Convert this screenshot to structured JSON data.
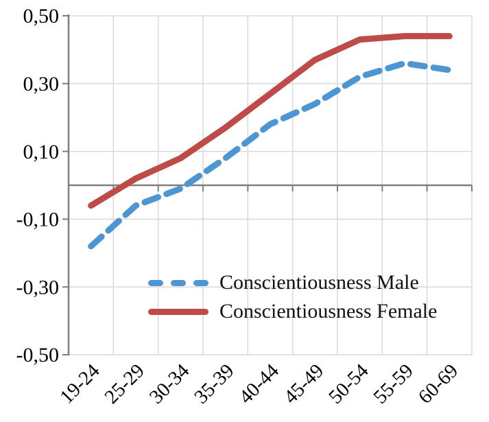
{
  "chart_data": {
    "type": "line",
    "title": "",
    "categories": [
      "19-24",
      "25-29",
      "30-34",
      "35-39",
      "40-44",
      "45-49",
      "50-54",
      "55-59",
      "60-69"
    ],
    "series": [
      {
        "name": "Conscientiousness Male",
        "color": "#4E96D3",
        "style": "dashed",
        "values": [
          -0.18,
          -0.06,
          -0.01,
          0.08,
          0.18,
          0.24,
          0.32,
          0.36,
          0.34
        ]
      },
      {
        "name": "Conscientiousness Female",
        "color": "#BE4B48",
        "style": "solid",
        "values": [
          -0.06,
          0.02,
          0.08,
          0.17,
          0.27,
          0.37,
          0.43,
          0.44,
          0.44
        ]
      }
    ],
    "xlabel": "",
    "ylabel": "",
    "ylim": [
      -0.5,
      0.5
    ],
    "y_ticks": [
      "0,50",
      "0,30",
      "0,10",
      "-0,10",
      "-0,30",
      "-0,50"
    ],
    "y_tick_values": [
      0.5,
      0.3,
      0.1,
      -0.1,
      -0.3,
      -0.5
    ],
    "decimal_separator": ",",
    "grid": true,
    "legend_position": "inside-bottom-center",
    "colors": {
      "gridline": "#D9D9D9",
      "axis": "#7F7F7F",
      "text": "#000000",
      "background": "#FFFFFF"
    }
  }
}
